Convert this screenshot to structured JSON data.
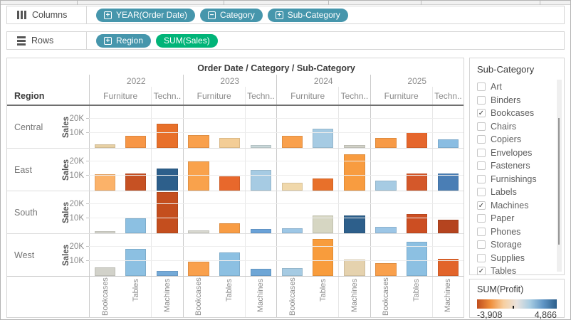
{
  "shelves": {
    "columns": {
      "label": "Columns",
      "pills": [
        {
          "label": "YEAR(Order Date)",
          "icon": "plus",
          "color": "blue"
        },
        {
          "label": "Category",
          "icon": "minus",
          "color": "blue"
        },
        {
          "label": "Sub-Category",
          "icon": "plus",
          "color": "blue"
        }
      ]
    },
    "rows": {
      "label": "Rows",
      "pills": [
        {
          "label": "Region",
          "icon": "plus",
          "color": "blue"
        },
        {
          "label": "SUM(Sales)",
          "icon": "none",
          "color": "green"
        }
      ]
    }
  },
  "chart_data": {
    "type": "bar",
    "title": "Order Date / Category / Sub-Category",
    "region_header": "Region",
    "ylabel": "Sales",
    "ymax": 28500,
    "yticks": [
      {
        "label": "20K",
        "value": 20000
      },
      {
        "label": "10K",
        "value": 10000
      }
    ],
    "years": [
      "2022",
      "2023",
      "2024",
      "2025"
    ],
    "category_labels": [
      "Furniture",
      "Techn.."
    ],
    "subcategories": [
      "Bookcases",
      "Tables",
      "Machines"
    ],
    "series": [
      {
        "region": "Central",
        "values": [
          2300,
          8000,
          16500,
          8500,
          7000,
          2000,
          8000,
          13000,
          2000,
          7000,
          10500,
          6000
        ],
        "colors": [
          "#e7d0a4",
          "#f79646",
          "#e8702a",
          "#f9a04c",
          "#f3cd96",
          "#c9d8da",
          "#f9a04c",
          "#a6cbe3",
          "#d2d2c8",
          "#f79a46",
          "#e5662c",
          "#8abde2"
        ]
      },
      {
        "region": "East",
        "values": [
          11000,
          11500,
          15000,
          20000,
          9500,
          14000,
          5500,
          8000,
          24500,
          7000,
          11500,
          11500
        ],
        "colors": [
          "#fbb269",
          "#c65123",
          "#2d5f8b",
          "#f9a24c",
          "#e8682c",
          "#a6cbe3",
          "#f0d8ab",
          "#e8702a",
          "#f89c40",
          "#a6cbe3",
          "#d4582a",
          "#4a7eb5"
        ]
      },
      {
        "region": "South",
        "values": [
          1400,
          10000,
          28000,
          1800,
          7000,
          2700,
          3200,
          12000,
          12200,
          4500,
          13000,
          9000
        ],
        "colors": [
          "#d8d8d0",
          "#8cc0e2",
          "#c44e1e",
          "#d8d8d0",
          "#f89c44",
          "#6aa2d8",
          "#9dc7e6",
          "#d6d6c2",
          "#2d5f8b",
          "#9cc6e6",
          "#cc4e22",
          "#b5441f"
        ]
      },
      {
        "region": "West",
        "values": [
          6000,
          18500,
          3600,
          9500,
          16000,
          5000,
          5500,
          25000,
          11000,
          8500,
          23000,
          11500
        ],
        "colors": [
          "#d2d2ca",
          "#8cc0e2",
          "#74aad8",
          "#f9a04c",
          "#8cc0e2",
          "#6ea6d6",
          "#a6cbe3",
          "#f89c3c",
          "#e5d2ae",
          "#f9a04c",
          "#8cc0e2",
          "#e2642a"
        ]
      }
    ]
  },
  "filter": {
    "title": "Sub-Category",
    "items": [
      {
        "label": "Art",
        "checked": false
      },
      {
        "label": "Binders",
        "checked": false
      },
      {
        "label": "Bookcases",
        "checked": true
      },
      {
        "label": "Chairs",
        "checked": false
      },
      {
        "label": "Copiers",
        "checked": false
      },
      {
        "label": "Envelopes",
        "checked": false
      },
      {
        "label": "Fasteners",
        "checked": false
      },
      {
        "label": "Furnishings",
        "checked": false
      },
      {
        "label": "Labels",
        "checked": false
      },
      {
        "label": "Machines",
        "checked": true
      },
      {
        "label": "Paper",
        "checked": false
      },
      {
        "label": "Phones",
        "checked": false
      },
      {
        "label": "Storage",
        "checked": false
      },
      {
        "label": "Supplies",
        "checked": false
      },
      {
        "label": "Tables",
        "checked": true
      }
    ]
  },
  "legend": {
    "title": "SUM(Profit)",
    "min_label": "-3,908",
    "max_label": "4,866",
    "zero_position": 0.445,
    "gradient": [
      "#c04d1d",
      "#ef8e3b",
      "#f7cfa0",
      "#e9e3df",
      "#a7cce2",
      "#5e94c4",
      "#2d5f8b"
    ]
  }
}
